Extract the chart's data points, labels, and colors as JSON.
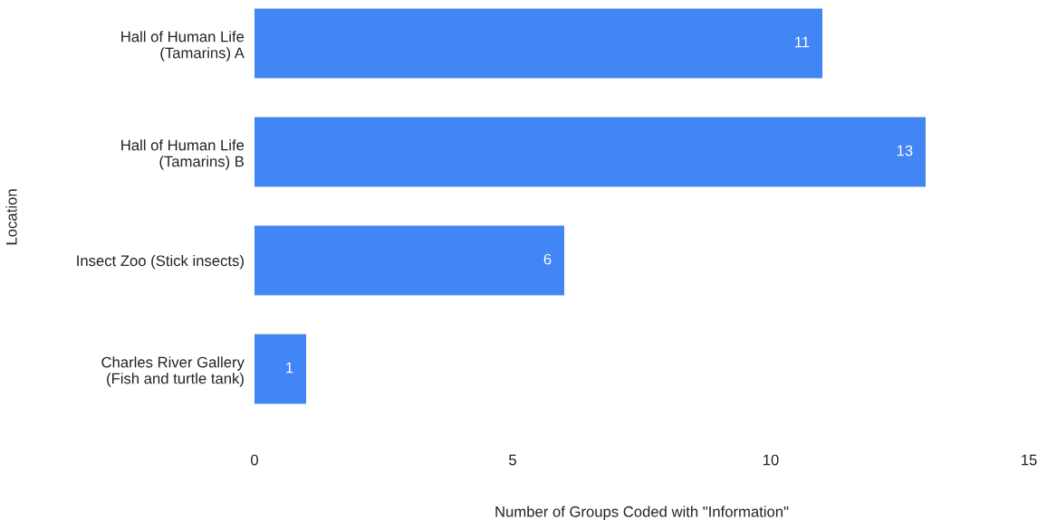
{
  "chart_data": {
    "type": "bar",
    "orientation": "horizontal",
    "xlabel": "Number of Groups Coded with \"Information\"",
    "ylabel": "Location",
    "categories": [
      "Hall of Human Life\n(Tamarins) A",
      "Hall of Human Life\n(Tamarins) B",
      "Insect Zoo (Stick insects)",
      "Charles River Gallery\n(Fish and turtle tank)"
    ],
    "values": [
      11,
      13,
      6,
      1
    ],
    "color": "#4285f4",
    "xlim": [
      0,
      15
    ],
    "xticks": [
      0,
      5,
      10,
      15
    ],
    "data_labels": true,
    "grid": false
  }
}
